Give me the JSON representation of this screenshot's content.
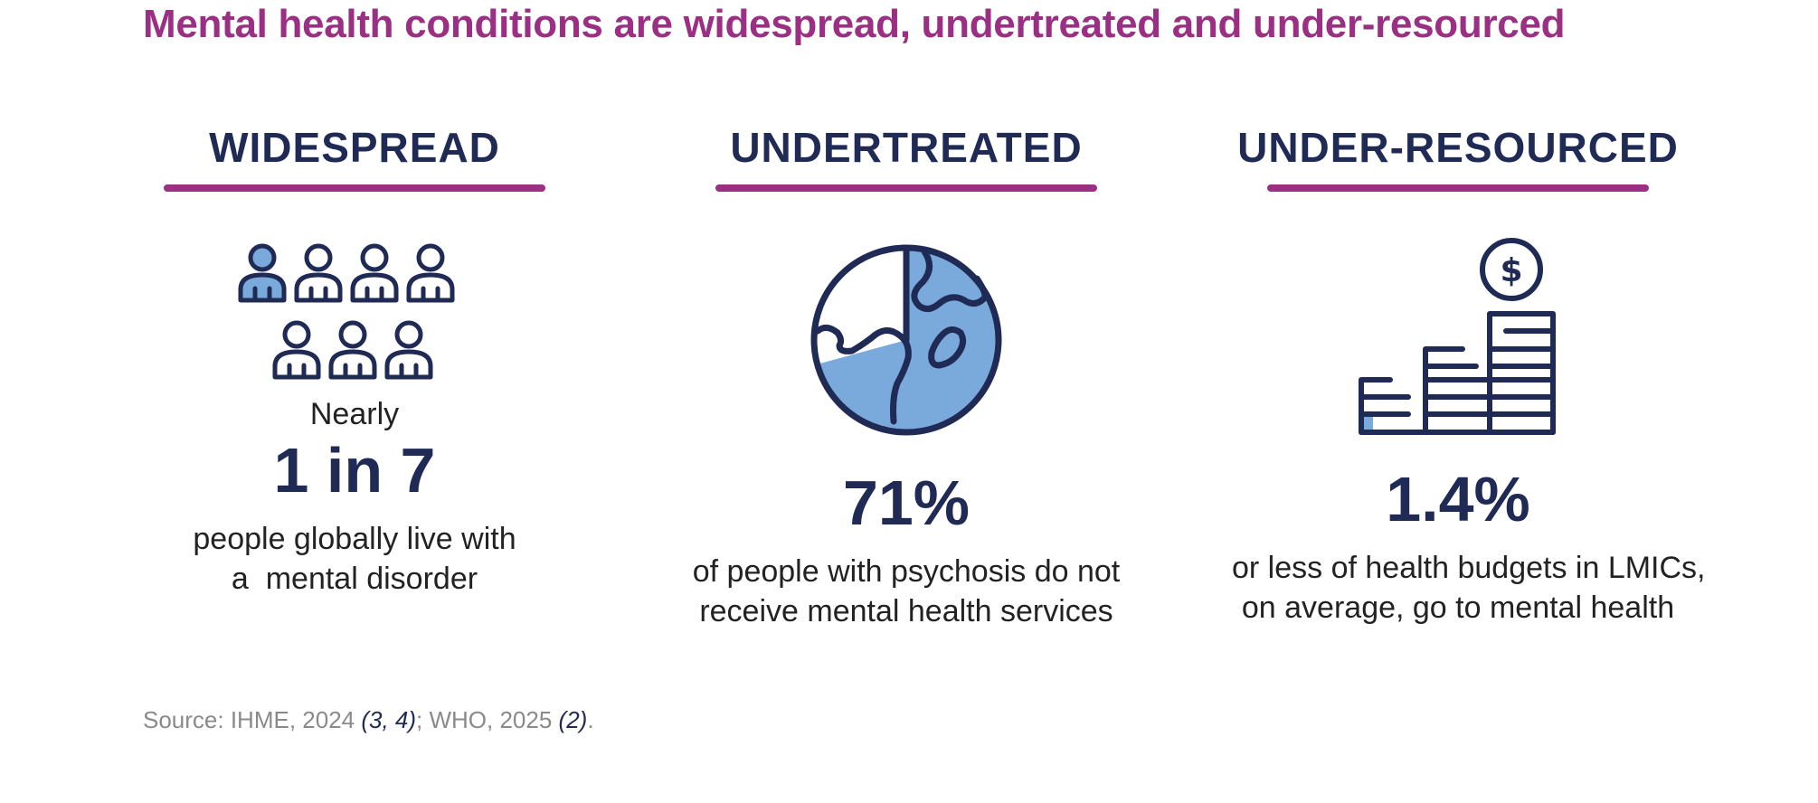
{
  "title": "Mental health conditions are widespread, undertreated and under-resourced",
  "columns": [
    {
      "heading": "WIDESPREAD",
      "icon": "people-group-icon",
      "pre": "Nearly",
      "stat": "1 in 7",
      "desc_line1": "people globally live with",
      "desc_line2": "a  mental disorder"
    },
    {
      "heading": "UNDERTREATED",
      "icon": "globe-icon",
      "stat": "71%",
      "desc_line1": "of people with psychosis do not",
      "desc_line2": "receive mental health services"
    },
    {
      "heading": "UNDER-RESOURCED",
      "icon": "coin-stack-icon",
      "coin_symbol": "$",
      "stat": "1.4%",
      "desc_line1": "or less of health budgets in LMICs,",
      "desc_line2": "on average, go to mental health"
    }
  ],
  "source": {
    "prefix": "Source: IHME, 2024 ",
    "cite1": "(3, 4)",
    "middle": "; WHO, 2025 ",
    "cite2": "(2)",
    "suffix": "."
  },
  "colors": {
    "accent": "#9a2f83",
    "navy": "#1f2a55",
    "fill": "#7aa9dc"
  }
}
